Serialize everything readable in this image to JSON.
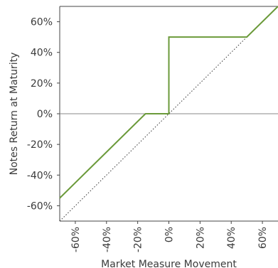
{
  "chart_data": {
    "type": "line",
    "title": "",
    "xlabel": "Market Measure Movement",
    "ylabel": "Notes Return at Maturity",
    "xlim": [
      -70,
      70
    ],
    "ylim": [
      -70,
      70
    ],
    "x_ticks": [
      -60,
      -40,
      -20,
      0,
      20,
      40,
      60
    ],
    "y_ticks": [
      60,
      40,
      20,
      0,
      -20,
      -40,
      -60
    ],
    "x_tick_labels": [
      "-60%",
      "-40%",
      "-20%",
      "0%",
      "20%",
      "40%",
      "60%"
    ],
    "y_tick_labels": [
      "60%",
      "40%",
      "20%",
      "0%",
      "-20%",
      "-40%",
      "-60%"
    ],
    "grid": false,
    "series": [
      {
        "style": "solid",
        "color": "#6b9a3a",
        "x": [
          -70,
          -15,
          0,
          0,
          50,
          70
        ],
        "y": [
          -55,
          0,
          0,
          50,
          50,
          70
        ]
      },
      {
        "style": "dotted",
        "color": "#333333",
        "x": [
          -70,
          70
        ],
        "y": [
          -70,
          70
        ]
      }
    ],
    "zero_line_color": "#888888",
    "axis_color": "#444444"
  }
}
